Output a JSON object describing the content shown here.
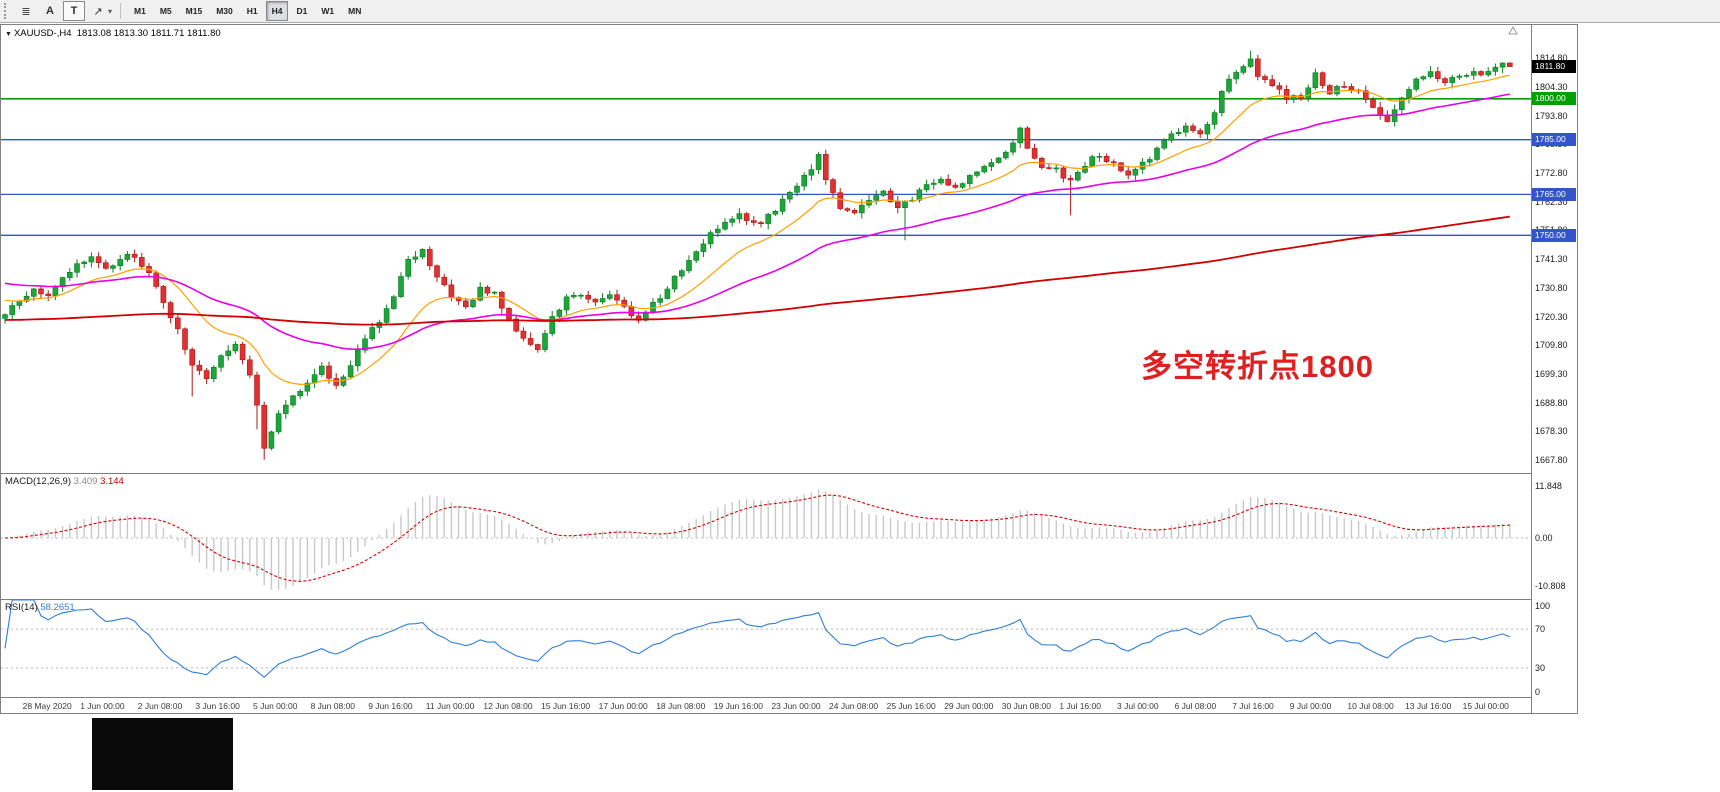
{
  "toolbar": {
    "icon_buttons": [
      {
        "name": "charts-grid-icon",
        "glyph": "≣"
      },
      {
        "name": "annotation-a-button",
        "glyph": "A"
      },
      {
        "name": "text-tool-button",
        "glyph": "T"
      },
      {
        "name": "crosshair-tool-icon",
        "glyph": "↗"
      }
    ],
    "dropdown_caret": "▾",
    "timeframes": [
      "M1",
      "M5",
      "M15",
      "M30",
      "H1",
      "H4",
      "D1",
      "W1",
      "MN"
    ],
    "active_timeframe": "H4"
  },
  "chart_window": {
    "title": {
      "dropdown_glyph": "▼",
      "symbol_period": "XAUUSD-,H4",
      "ohlc": "1813.08 1813.30 1811.71 1811.80"
    },
    "annotation": {
      "text": "多空转折点1800",
      "color": "#E02020"
    },
    "macd": {
      "name": "MACD(12,26,9)",
      "value_main": "3.409",
      "value_signal": "3.144",
      "axis_labels": [
        "11.848",
        "0.00",
        "-10.808"
      ],
      "axis_values": [
        11.848,
        0,
        -10.808
      ]
    },
    "rsi": {
      "name": "RSI(14)",
      "value": "58.2651",
      "axis_labels": [
        "100",
        "70",
        "30",
        "0"
      ],
      "axis_values": [
        100,
        70,
        30,
        0
      ]
    }
  },
  "chart_data": {
    "type": "candlestick",
    "symbol": "XAUUSD-",
    "timeframe": "H4",
    "candle_count": 210,
    "price_top": 1827,
    "price_bottom": 1663,
    "current_price": {
      "value": 1811.8,
      "label": "1811.80",
      "box_color": "#000000"
    },
    "y_axis_labels": [
      "1814.80",
      "1804.30",
      "1793.80",
      "1783.30",
      "1772.80",
      "1762.30",
      "1751.80",
      "1741.30",
      "1730.80",
      "1720.30",
      "1709.80",
      "1699.30",
      "1688.80",
      "1678.30",
      "1667.80"
    ],
    "x_axis": {
      "indices": [
        3,
        11,
        19,
        27,
        35,
        43,
        51,
        59,
        67,
        75,
        83,
        91,
        99,
        107,
        115,
        123,
        131,
        139,
        147,
        155,
        163,
        171,
        179,
        187,
        195,
        203
      ],
      "labels": [
        "28 May 2020",
        "1 Jun 00:00",
        "2 Jun 08:00",
        "3 Jun 16:00",
        "5 Jun 00:00",
        "8 Jun 08:00",
        "9 Jun 16:00",
        "11 Jun 00:00",
        "12 Jun 08:00",
        "15 Jun 16:00",
        "17 Jun 00:00",
        "18 Jun 08:00",
        "19 Jun 16:00",
        "23 Jun 00:00",
        "24 Jun 08:00",
        "25 Jun 16:00",
        "29 Jun 00:00",
        "30 Jun 08:00",
        "1 Jul 16:00",
        "3 Jul 00:00",
        "6 Jul 08:00",
        "7 Jul 16:00",
        "9 Jul 00:00",
        "10 Jul 08:00",
        "13 Jul 16:00",
        "15 Jul 00:00"
      ]
    },
    "levels": [
      {
        "price": 1800.0,
        "label": "1800.00",
        "color": "#00A000"
      },
      {
        "price": 1785.0,
        "label": "1785.00",
        "color": "#3355CC"
      },
      {
        "price": 1765.0,
        "label": "1765.00",
        "color": "#3355CC"
      },
      {
        "price": 1750.0,
        "label": "1750.00",
        "color": "#3355CC"
      }
    ],
    "colors": {
      "up": "#1CA53A",
      "up_stroke": "#0E7D24",
      "down": "#E03030",
      "down_stroke": "#B01818",
      "ma_fast": "#FFA000",
      "ma_mid": "#E800E8",
      "ma_slow": "#D00000",
      "macd_hist": "#C8C8C8",
      "macd_signal": "#DD0000",
      "rsi_line": "#2F7ED8"
    },
    "moving_averages": [
      {
        "name": "ma-fast-line",
        "alpha": 0.13,
        "init": 1727,
        "color_key": "ma_fast",
        "width": 1.2
      },
      {
        "name": "ma-mid-line",
        "alpha": 0.045,
        "init": 1733,
        "color_key": "ma_mid",
        "width": 1.6
      },
      {
        "name": "ma-slow-line",
        "alpha": 0.007,
        "init": 1719,
        "color_key": "ma_slow",
        "width": 1.8
      }
    ],
    "close_keypoints": [
      [
        0,
        1721
      ],
      [
        2,
        1726
      ],
      [
        4,
        1731
      ],
      [
        6,
        1728
      ],
      [
        8,
        1735
      ],
      [
        10,
        1740
      ],
      [
        12,
        1742
      ],
      [
        14,
        1737
      ],
      [
        16,
        1741
      ],
      [
        18,
        1743
      ],
      [
        20,
        1735
      ],
      [
        22,
        1726
      ],
      [
        24,
        1716
      ],
      [
        26,
        1702
      ],
      [
        28,
        1698
      ],
      [
        30,
        1707
      ],
      [
        32,
        1709
      ],
      [
        34,
        1699
      ],
      [
        35,
        1687
      ],
      [
        36,
        1673
      ],
      [
        37,
        1677
      ],
      [
        38,
        1684
      ],
      [
        40,
        1691
      ],
      [
        42,
        1697
      ],
      [
        44,
        1701
      ],
      [
        46,
        1694
      ],
      [
        48,
        1701
      ],
      [
        50,
        1713
      ],
      [
        52,
        1719
      ],
      [
        54,
        1728
      ],
      [
        56,
        1741
      ],
      [
        58,
        1744
      ],
      [
        60,
        1735
      ],
      [
        62,
        1727
      ],
      [
        64,
        1723
      ],
      [
        66,
        1731
      ],
      [
        68,
        1728
      ],
      [
        70,
        1720
      ],
      [
        72,
        1711
      ],
      [
        74,
        1708
      ],
      [
        76,
        1719
      ],
      [
        78,
        1727
      ],
      [
        80,
        1729
      ],
      [
        82,
        1726
      ],
      [
        84,
        1729
      ],
      [
        86,
        1723
      ],
      [
        88,
        1720
      ],
      [
        90,
        1725
      ],
      [
        92,
        1731
      ],
      [
        94,
        1737
      ],
      [
        96,
        1745
      ],
      [
        98,
        1751
      ],
      [
        100,
        1755
      ],
      [
        102,
        1759
      ],
      [
        104,
        1754
      ],
      [
        106,
        1757
      ],
      [
        108,
        1763
      ],
      [
        110,
        1769
      ],
      [
        112,
        1775
      ],
      [
        113,
        1779
      ],
      [
        114,
        1771
      ],
      [
        116,
        1761
      ],
      [
        118,
        1757
      ],
      [
        120,
        1763
      ],
      [
        122,
        1765
      ],
      [
        124,
        1760
      ],
      [
        126,
        1764
      ],
      [
        128,
        1768
      ],
      [
        130,
        1771
      ],
      [
        132,
        1767
      ],
      [
        134,
        1772
      ],
      [
        136,
        1775
      ],
      [
        138,
        1778
      ],
      [
        140,
        1785
      ],
      [
        141,
        1789
      ],
      [
        142,
        1781
      ],
      [
        144,
        1775
      ],
      [
        146,
        1774
      ],
      [
        148,
        1769
      ],
      [
        150,
        1776
      ],
      [
        152,
        1780
      ],
      [
        154,
        1776
      ],
      [
        156,
        1773
      ],
      [
        158,
        1777
      ],
      [
        160,
        1781
      ],
      [
        162,
        1787
      ],
      [
        164,
        1791
      ],
      [
        166,
        1787
      ],
      [
        168,
        1794
      ],
      [
        169,
        1802
      ],
      [
        170,
        1808
      ],
      [
        172,
        1812
      ],
      [
        173,
        1814
      ],
      [
        174,
        1808
      ],
      [
        176,
        1806
      ],
      [
        178,
        1799
      ],
      [
        180,
        1801
      ],
      [
        182,
        1809
      ],
      [
        184,
        1803
      ],
      [
        186,
        1805
      ],
      [
        188,
        1803
      ],
      [
        190,
        1797
      ],
      [
        192,
        1791
      ],
      [
        194,
        1800
      ],
      [
        196,
        1808
      ],
      [
        198,
        1810
      ],
      [
        200,
        1806
      ],
      [
        202,
        1808
      ],
      [
        204,
        1809
      ],
      [
        206,
        1810
      ],
      [
        208,
        1813.1
      ],
      [
        209,
        1811.8
      ]
    ],
    "wick_overrides": {
      "26": {
        "l": 1691
      },
      "35": {
        "l": 1679
      },
      "36": {
        "l": 1667.9
      },
      "113": {
        "h": 1780.6
      },
      "125": {
        "l": 1748.2
      },
      "141": {
        "h": 1789.8
      },
      "148": {
        "l": 1757.3
      },
      "173": {
        "h": 1817.6
      },
      "209": {
        "h": 1813.3,
        "l": 1811.7
      }
    }
  }
}
